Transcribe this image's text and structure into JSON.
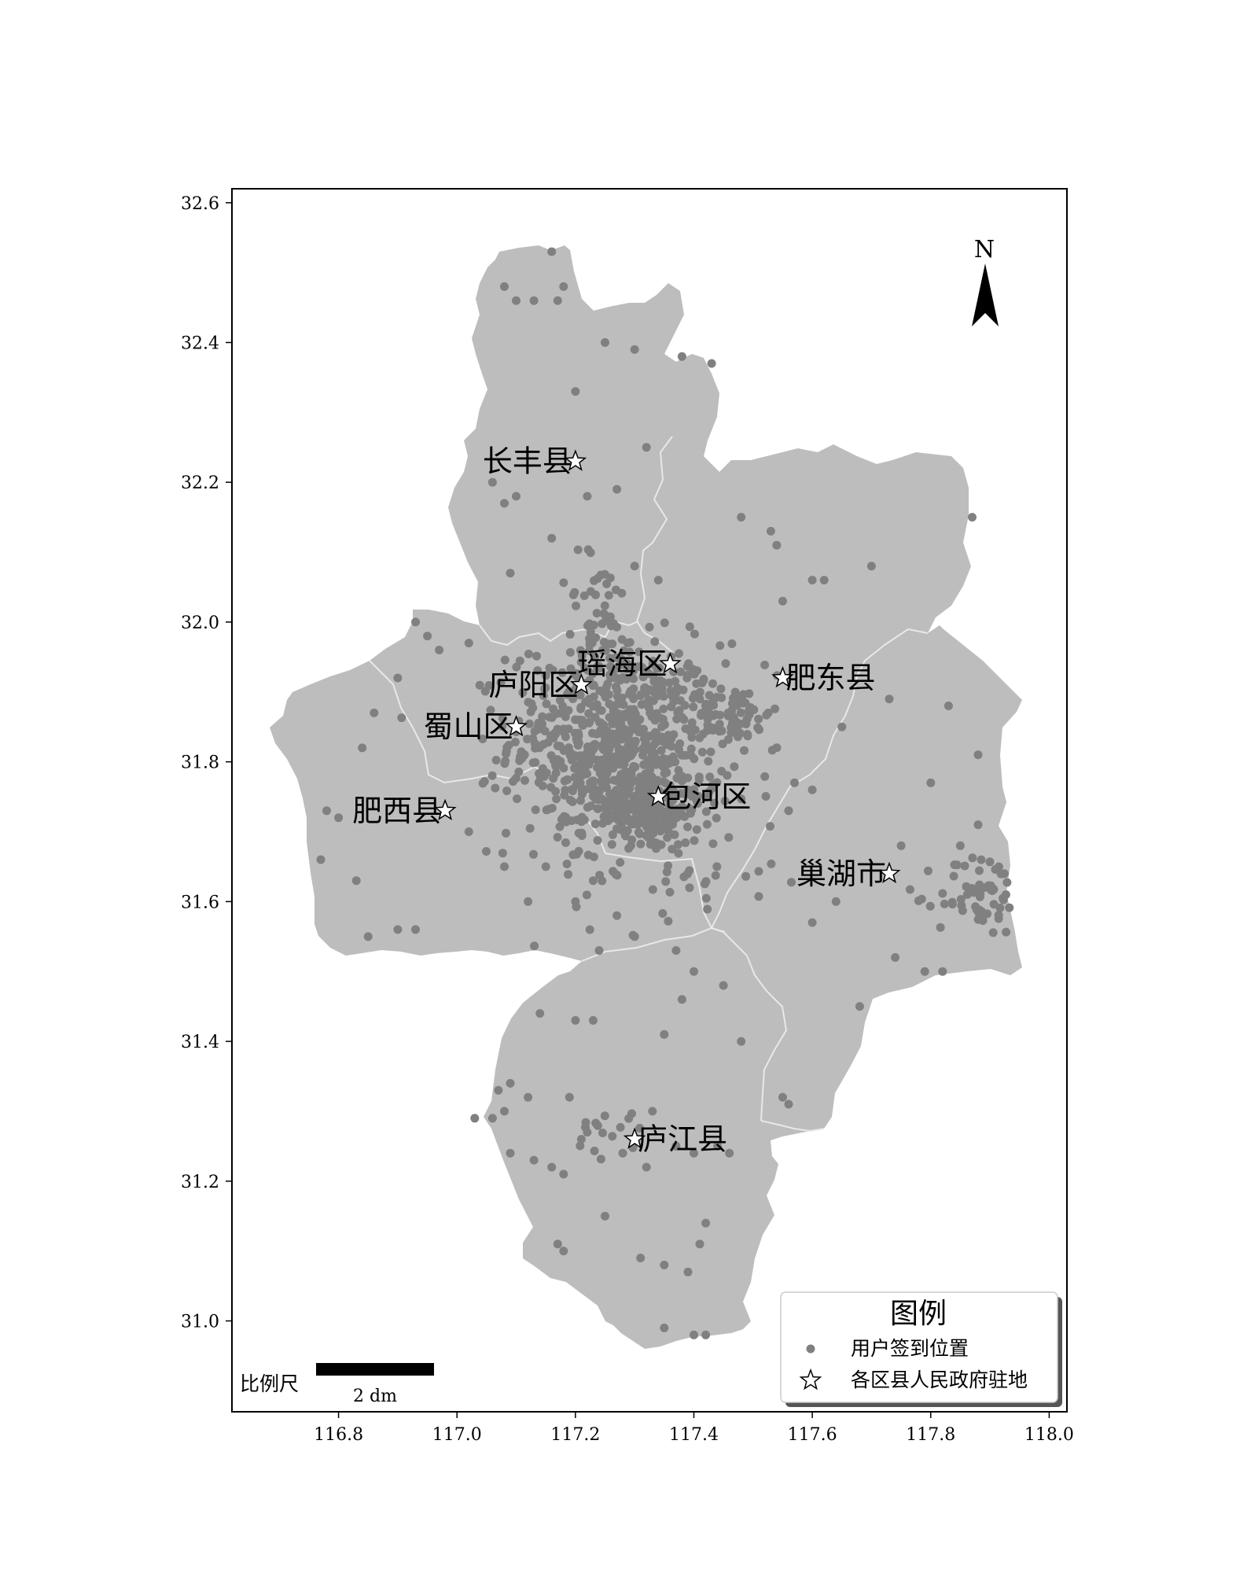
{
  "map": {
    "x_ticks": [
      "116.8",
      "117.0",
      "117.2",
      "117.4",
      "117.6",
      "117.8",
      "118.0"
    ],
    "y_ticks": [
      "32.6",
      "32.4",
      "32.2",
      "32.0",
      "31.8",
      "31.6",
      "31.4",
      "31.2",
      "31.0"
    ],
    "x_range": [
      116.62,
      118.03
    ],
    "y_range": [
      30.87,
      32.62
    ],
    "colors": {
      "land": "#bdbdbd",
      "points": "#808080",
      "boundary": "#e8e8e8"
    },
    "north_label": "N",
    "districts": [
      {
        "name": "长丰县",
        "lon": 117.2,
        "lat": 32.23,
        "label_side": "left"
      },
      {
        "name": "瑶海区",
        "lon": 117.36,
        "lat": 31.94,
        "label_side": "left"
      },
      {
        "name": "庐阳区",
        "lon": 117.21,
        "lat": 31.91,
        "label_side": "left"
      },
      {
        "name": "肥东县",
        "lon": 117.55,
        "lat": 31.92,
        "label_side": "right"
      },
      {
        "name": "蜀山区",
        "lon": 117.1,
        "lat": 31.85,
        "label_side": "left"
      },
      {
        "name": "包河区",
        "lon": 117.34,
        "lat": 31.75,
        "label_side": "right"
      },
      {
        "name": "肥西县",
        "lon": 116.98,
        "lat": 31.73,
        "label_side": "left"
      },
      {
        "name": "巢湖市",
        "lon": 117.73,
        "lat": 31.64,
        "label_side": "left"
      },
      {
        "name": "庐江县",
        "lon": 117.3,
        "lat": 31.26,
        "label_side": "right"
      }
    ],
    "clusters": [
      {
        "lon": 117.27,
        "lat": 31.83,
        "spread_lon": 0.09,
        "spread_lat": 0.07,
        "count": 700
      },
      {
        "lon": 117.31,
        "lat": 31.73,
        "spread_lon": 0.05,
        "spread_lat": 0.03,
        "count": 180
      },
      {
        "lon": 117.47,
        "lat": 31.87,
        "spread_lon": 0.03,
        "spread_lat": 0.02,
        "count": 60
      },
      {
        "lon": 117.89,
        "lat": 31.61,
        "spread_lon": 0.04,
        "spread_lat": 0.03,
        "count": 60
      },
      {
        "lon": 117.24,
        "lat": 32.0,
        "spread_lon": 0.03,
        "spread_lat": 0.05,
        "count": 50
      },
      {
        "lon": 117.37,
        "lat": 31.68,
        "spread_lon": 0.12,
        "spread_lat": 0.06,
        "count": 60
      },
      {
        "lon": 117.26,
        "lat": 31.27,
        "spread_lon": 0.03,
        "spread_lat": 0.02,
        "count": 15
      }
    ],
    "scattered_points": [
      [
        117.16,
        32.53
      ],
      [
        117.13,
        32.46
      ],
      [
        117.17,
        32.46
      ],
      [
        117.18,
        32.48
      ],
      [
        117.08,
        32.48
      ],
      [
        117.1,
        32.46
      ],
      [
        117.25,
        32.4
      ],
      [
        117.3,
        32.39
      ],
      [
        117.38,
        32.38
      ],
      [
        117.43,
        32.37
      ],
      [
        117.2,
        32.33
      ],
      [
        117.32,
        32.25
      ],
      [
        117.06,
        32.2
      ],
      [
        117.1,
        32.18
      ],
      [
        117.08,
        32.17
      ],
      [
        117.22,
        32.18
      ],
      [
        117.27,
        32.19
      ],
      [
        117.16,
        32.12
      ],
      [
        117.09,
        32.07
      ],
      [
        117.3,
        32.08
      ],
      [
        117.34,
        32.06
      ],
      [
        117.48,
        32.15
      ],
      [
        117.53,
        32.13
      ],
      [
        117.54,
        32.11
      ],
      [
        117.6,
        32.06
      ],
      [
        117.7,
        32.08
      ],
      [
        117.87,
        32.15
      ],
      [
        117.62,
        32.06
      ],
      [
        117.55,
        32.03
      ],
      [
        116.93,
        32.0
      ],
      [
        116.95,
        31.98
      ],
      [
        116.97,
        31.96
      ],
      [
        117.02,
        31.97
      ],
      [
        116.9,
        31.92
      ],
      [
        116.86,
        31.87
      ],
      [
        116.84,
        31.82
      ],
      [
        116.78,
        31.73
      ],
      [
        116.8,
        31.72
      ],
      [
        116.77,
        31.66
      ],
      [
        116.83,
        31.63
      ],
      [
        116.85,
        31.55
      ],
      [
        116.9,
        31.56
      ],
      [
        116.93,
        31.56
      ],
      [
        117.02,
        31.7
      ],
      [
        117.08,
        31.65
      ],
      [
        117.12,
        31.6
      ],
      [
        117.15,
        31.65
      ],
      [
        117.2,
        31.6
      ],
      [
        117.23,
        31.63
      ],
      [
        117.27,
        31.58
      ],
      [
        117.3,
        31.55
      ],
      [
        117.24,
        31.53
      ],
      [
        117.37,
        31.53
      ],
      [
        117.4,
        31.5
      ],
      [
        117.45,
        31.48
      ],
      [
        117.38,
        31.46
      ],
      [
        117.14,
        31.44
      ],
      [
        117.2,
        31.43
      ],
      [
        117.23,
        31.43
      ],
      [
        117.35,
        31.41
      ],
      [
        117.48,
        31.4
      ],
      [
        117.68,
        31.45
      ],
      [
        117.74,
        31.52
      ],
      [
        117.79,
        31.5
      ],
      [
        117.82,
        31.5
      ],
      [
        117.6,
        31.57
      ],
      [
        117.64,
        31.6
      ],
      [
        117.75,
        31.68
      ],
      [
        117.8,
        31.77
      ],
      [
        117.88,
        31.81
      ],
      [
        117.83,
        31.88
      ],
      [
        117.73,
        31.89
      ],
      [
        117.65,
        31.85
      ],
      [
        117.57,
        31.77
      ],
      [
        117.6,
        31.76
      ],
      [
        117.85,
        31.68
      ],
      [
        117.88,
        31.71
      ],
      [
        117.56,
        31.73
      ],
      [
        117.07,
        31.33
      ],
      [
        117.09,
        31.34
      ],
      [
        117.08,
        31.3
      ],
      [
        117.12,
        31.32
      ],
      [
        117.19,
        31.32
      ],
      [
        117.06,
        31.29
      ],
      [
        117.09,
        31.24
      ],
      [
        117.13,
        31.23
      ],
      [
        117.16,
        31.22
      ],
      [
        117.18,
        31.21
      ],
      [
        117.21,
        31.26
      ],
      [
        117.28,
        31.24
      ],
      [
        117.33,
        31.3
      ],
      [
        117.37,
        31.25
      ],
      [
        117.4,
        31.24
      ],
      [
        117.44,
        31.25
      ],
      [
        117.46,
        31.24
      ],
      [
        117.25,
        31.15
      ],
      [
        117.42,
        31.14
      ],
      [
        117.41,
        31.11
      ],
      [
        117.17,
        31.11
      ],
      [
        117.18,
        31.1
      ],
      [
        117.31,
        31.09
      ],
      [
        117.35,
        31.08
      ],
      [
        117.39,
        31.07
      ],
      [
        117.35,
        30.99
      ],
      [
        117.4,
        30.98
      ],
      [
        117.42,
        30.98
      ],
      [
        117.55,
        31.32
      ],
      [
        117.56,
        31.31
      ],
      [
        117.03,
        31.29
      ],
      [
        117.3,
        31.26
      ],
      [
        117.32,
        31.22
      ],
      [
        117.22,
        31.27
      ]
    ]
  },
  "legend": {
    "title": "图例",
    "point_label": "用户签到位置",
    "star_label": "各区县人民政府驻地"
  },
  "scale_bar": {
    "label": "比例尺",
    "unit": "2 dm"
  }
}
